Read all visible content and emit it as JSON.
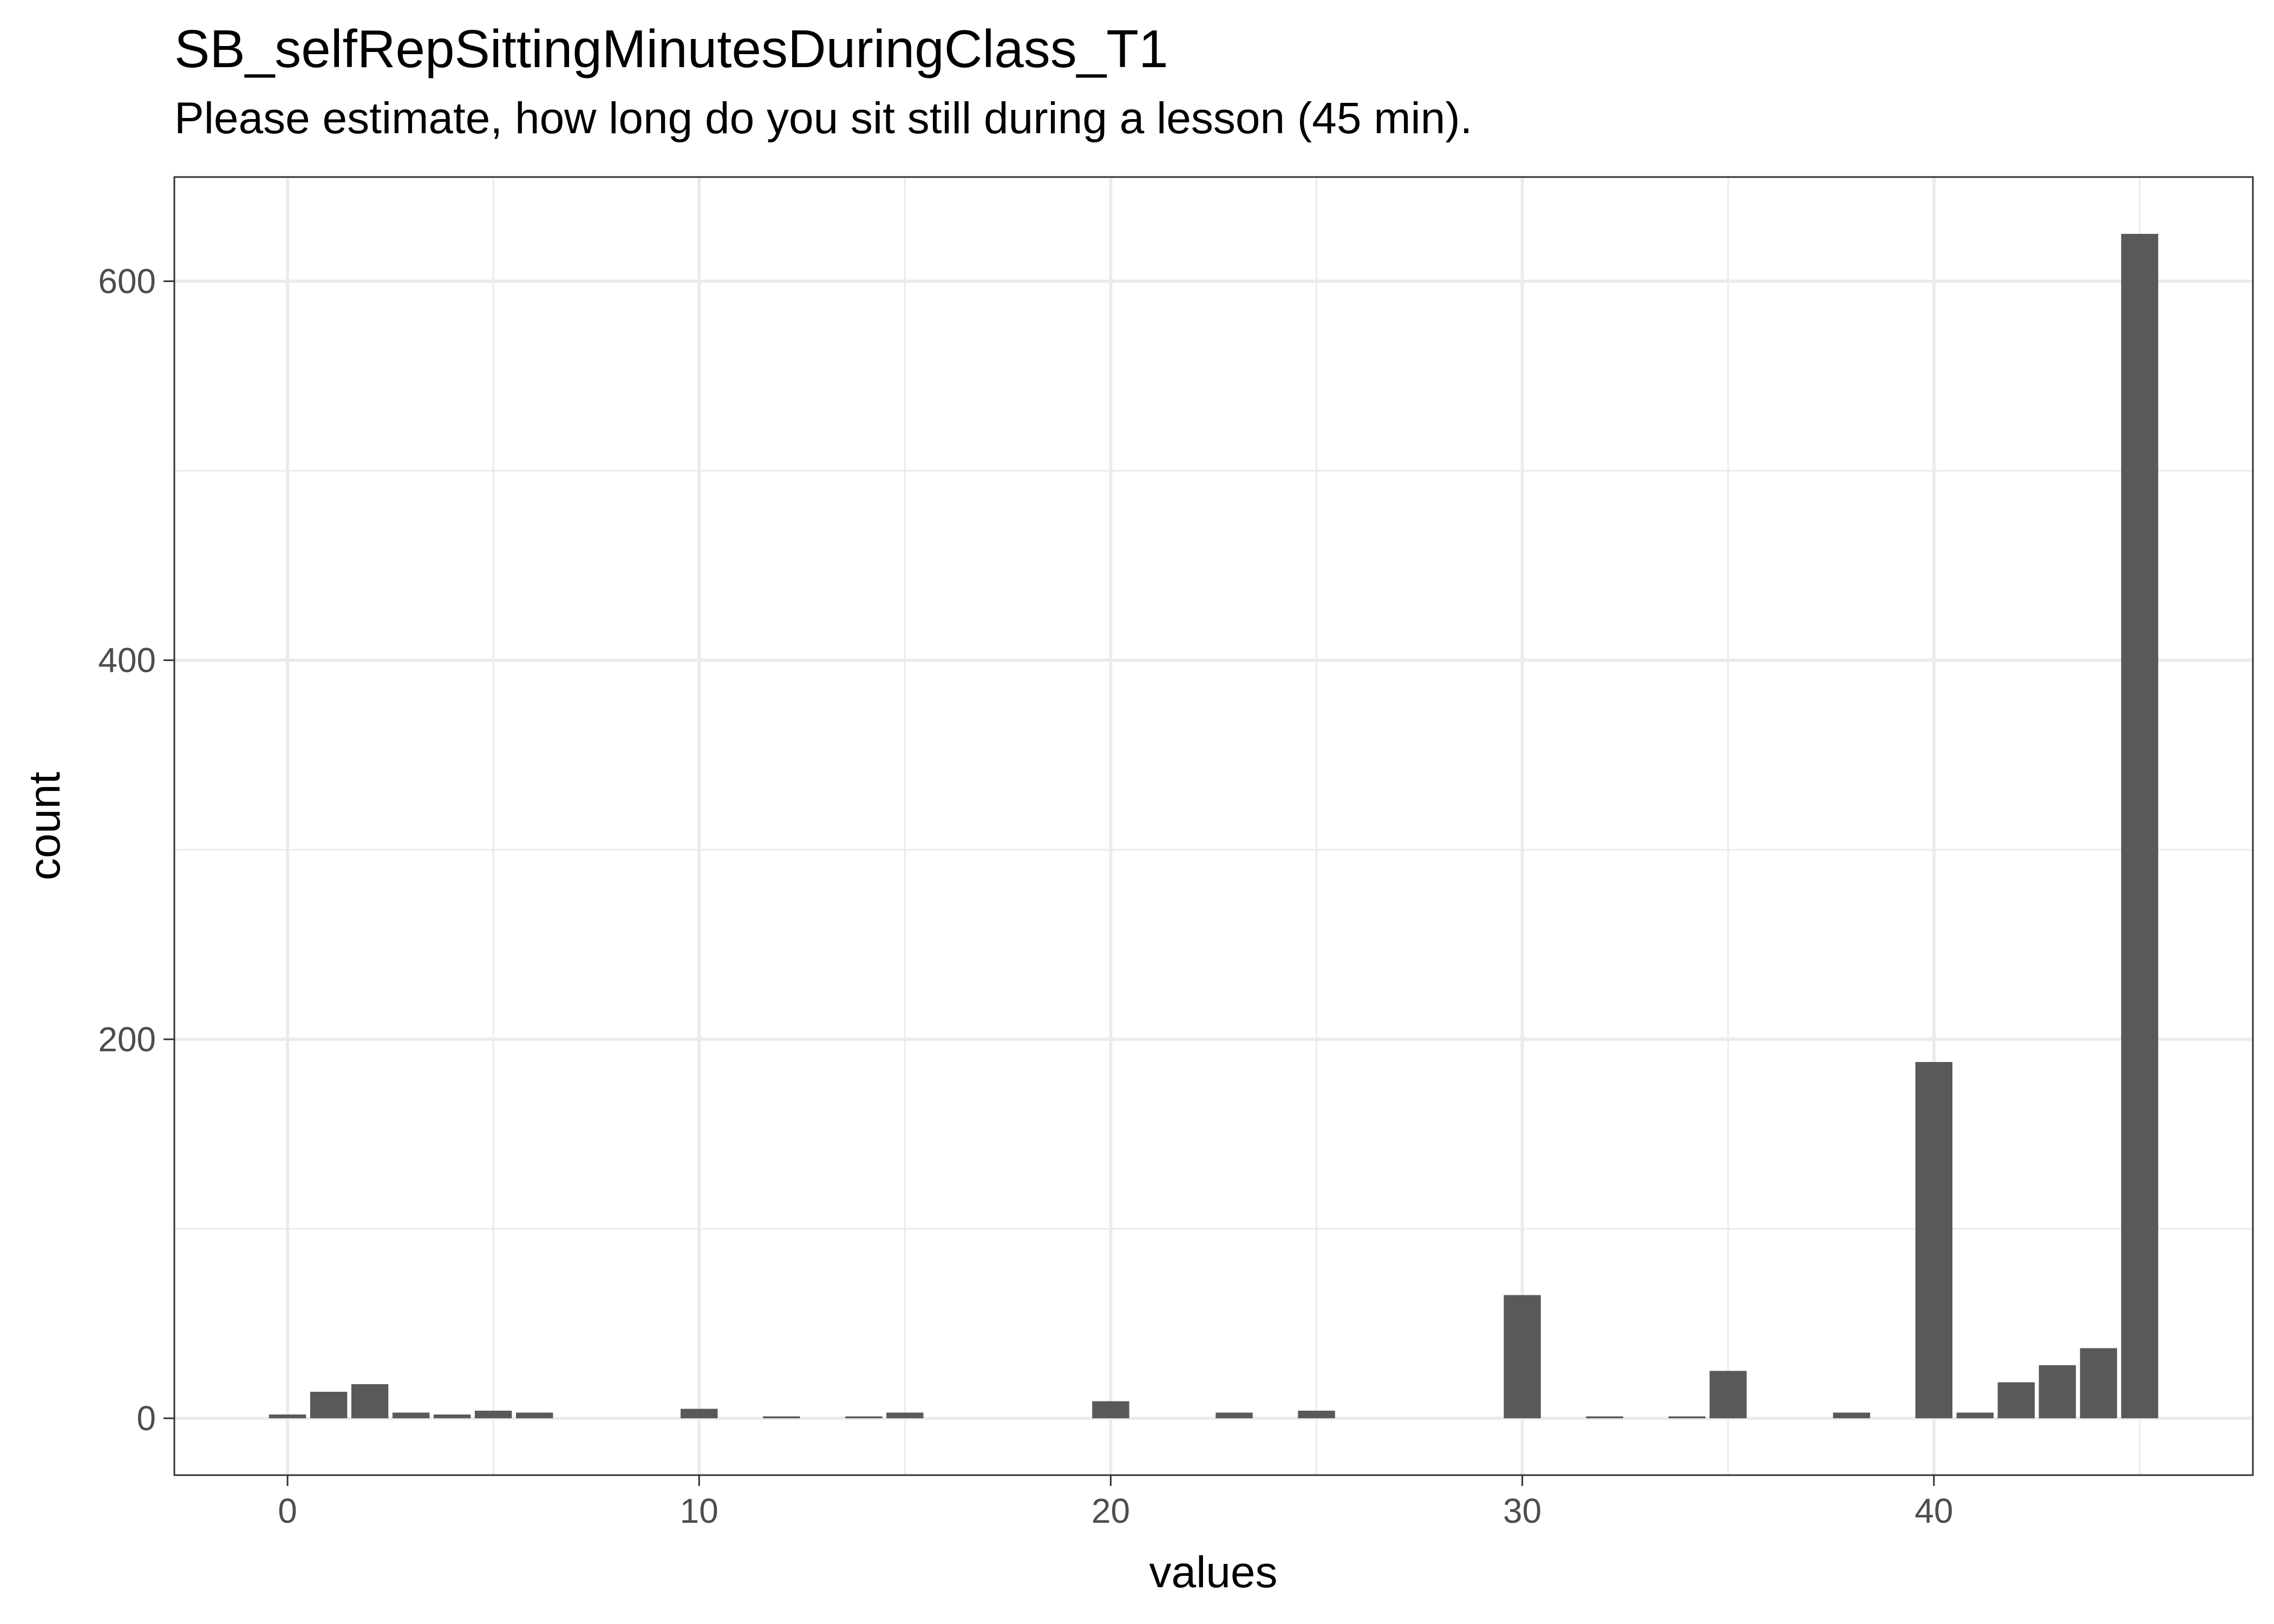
{
  "chart_data": {
    "type": "bar",
    "title": "SB_selfRepSittingMinutesDuringClass_T1",
    "subtitle": "Please estimate, how long do you sit still during a lesson (45 min).",
    "xlabel": "values",
    "ylabel": "count",
    "xlim": [
      -2.75,
      47.75
    ],
    "ylim": [
      -30,
      655
    ],
    "x_ticks": [
      0,
      10,
      20,
      30,
      40
    ],
    "y_ticks": [
      0,
      200,
      400,
      600
    ],
    "x_minor_ticks": [
      5,
      15,
      25,
      35,
      45
    ],
    "y_minor_ticks": [
      100,
      300,
      500
    ],
    "grid": true,
    "bar_color": "#595959",
    "x": [
      0,
      1,
      2,
      3,
      4,
      5,
      6,
      10,
      12,
      14,
      15,
      20,
      23,
      25,
      30,
      32,
      34,
      35,
      38,
      40,
      41,
      42,
      43,
      44,
      45
    ],
    "values": [
      2,
      14,
      18,
      3,
      2,
      4,
      3,
      5,
      1,
      1,
      3,
      9,
      3,
      4,
      65,
      1,
      1,
      25,
      3,
      188,
      3,
      19,
      28,
      37,
      625
    ]
  }
}
